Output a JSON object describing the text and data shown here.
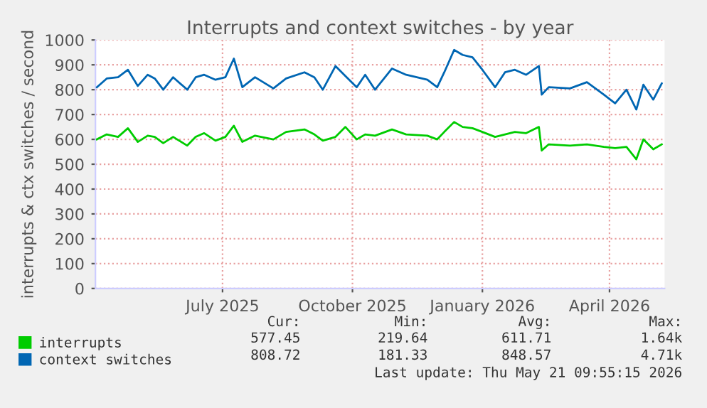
{
  "chart_data": {
    "type": "line",
    "title": "Interrupts and context switches - by year",
    "ylabel": "interrupts & ctx switches / second",
    "x": [
      "2025-04-03",
      "2025-04-10",
      "2025-04-18",
      "2025-04-25",
      "2025-05-02",
      "2025-05-09",
      "2025-05-14",
      "2025-05-20",
      "2025-05-27",
      "2025-06-06",
      "2025-06-12",
      "2025-06-18",
      "2025-06-26",
      "2025-07-03",
      "2025-07-09",
      "2025-07-15",
      "2025-07-24",
      "2025-08-06",
      "2025-08-15",
      "2025-08-28",
      "2025-09-04",
      "2025-09-10",
      "2025-09-19",
      "2025-09-26",
      "2025-10-04",
      "2025-10-10",
      "2025-10-17",
      "2025-10-29",
      "2025-11-08",
      "2025-11-23",
      "2025-11-30",
      "2025-12-05",
      "2025-12-12",
      "2025-12-18",
      "2025-12-25",
      "2026-01-01",
      "2026-01-10",
      "2026-01-17",
      "2026-01-24",
      "2026-02-01",
      "2026-02-10",
      "2026-02-12",
      "2026-02-17",
      "2026-03-04",
      "2026-03-16",
      "2026-03-28",
      "2026-04-05",
      "2026-04-13",
      "2026-04-20",
      "2026-04-25",
      "2026-05-02",
      "2026-05-08"
    ],
    "series": [
      {
        "name": "interrupts",
        "color": "#00cc00",
        "values": [
          600,
          620,
          610,
          645,
          590,
          615,
          610,
          585,
          610,
          575,
          610,
          625,
          595,
          610,
          655,
          590,
          615,
          600,
          630,
          640,
          620,
          595,
          610,
          650,
          600,
          620,
          615,
          640,
          620,
          615,
          600,
          630,
          670,
          650,
          645,
          630,
          610,
          620,
          630,
          625,
          650,
          555,
          580,
          575,
          580,
          570,
          565,
          570,
          520,
          600,
          560,
          580
        ]
      },
      {
        "name": "context switches",
        "color": "#0066b3",
        "values": [
          810,
          845,
          850,
          880,
          815,
          860,
          845,
          800,
          850,
          800,
          850,
          860,
          840,
          850,
          925,
          810,
          850,
          805,
          845,
          870,
          850,
          800,
          895,
          855,
          810,
          860,
          800,
          885,
          860,
          840,
          810,
          870,
          960,
          940,
          930,
          880,
          810,
          870,
          880,
          860,
          895,
          780,
          810,
          805,
          830,
          780,
          745,
          800,
          720,
          820,
          760,
          825
        ]
      }
    ],
    "xlim": [
      "2025-04-02",
      "2026-05-10"
    ],
    "xticks": [
      {
        "value": "2025-07-01",
        "label": "July 2025"
      },
      {
        "value": "2025-10-01",
        "label": "October 2025"
      },
      {
        "value": "2026-01-01",
        "label": "January 2026"
      },
      {
        "value": "2026-04-01",
        "label": "April 2026"
      }
    ],
    "ylim": [
      0,
      1000
    ],
    "yticks": [
      0,
      100,
      200,
      300,
      400,
      500,
      600,
      700,
      800,
      900,
      1000
    ],
    "grid": true,
    "legend": "bottom",
    "annotations": [
      "Cur:",
      "Min:",
      "Avg:",
      "Max:",
      "577.45",
      "219.64",
      "611.71",
      "1.64k",
      "808.72",
      "181.33",
      "848.57",
      "4.71k",
      "Last update: Thu May 21 09:55:15 2026"
    ]
  }
}
